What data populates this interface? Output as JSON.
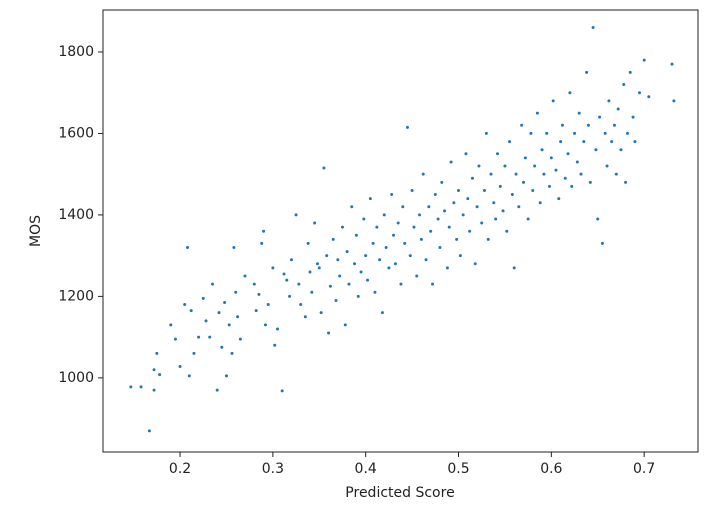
{
  "chart_data": {
    "type": "scatter",
    "xlabel": "Predicted Score",
    "ylabel": "MOS",
    "color": "#1f77b4",
    "xlim": [
      0.117,
      0.758
    ],
    "ylim": [
      818,
      1903
    ],
    "xticks": [
      0.2,
      0.3,
      0.4,
      0.5,
      0.6,
      0.7
    ],
    "yticks": [
      1000,
      1200,
      1400,
      1600,
      1800
    ],
    "x": [
      0.147,
      0.158,
      0.167,
      0.172,
      0.175,
      0.178,
      0.172,
      0.19,
      0.195,
      0.2,
      0.205,
      0.208,
      0.21,
      0.212,
      0.215,
      0.22,
      0.225,
      0.228,
      0.232,
      0.235,
      0.24,
      0.242,
      0.245,
      0.248,
      0.25,
      0.253,
      0.256,
      0.258,
      0.26,
      0.262,
      0.265,
      0.27,
      0.28,
      0.282,
      0.285,
      0.288,
      0.29,
      0.292,
      0.295,
      0.3,
      0.302,
      0.305,
      0.31,
      0.312,
      0.315,
      0.318,
      0.32,
      0.325,
      0.328,
      0.33,
      0.335,
      0.338,
      0.34,
      0.342,
      0.345,
      0.348,
      0.35,
      0.352,
      0.355,
      0.358,
      0.36,
      0.362,
      0.365,
      0.368,
      0.37,
      0.372,
      0.375,
      0.378,
      0.38,
      0.382,
      0.385,
      0.388,
      0.39,
      0.392,
      0.395,
      0.398,
      0.4,
      0.402,
      0.405,
      0.408,
      0.41,
      0.412,
      0.415,
      0.418,
      0.42,
      0.422,
      0.425,
      0.428,
      0.43,
      0.432,
      0.435,
      0.438,
      0.44,
      0.442,
      0.445,
      0.448,
      0.45,
      0.452,
      0.455,
      0.458,
      0.46,
      0.462,
      0.465,
      0.468,
      0.47,
      0.472,
      0.475,
      0.478,
      0.48,
      0.482,
      0.485,
      0.488,
      0.49,
      0.492,
      0.495,
      0.498,
      0.5,
      0.502,
      0.505,
      0.508,
      0.51,
      0.512,
      0.515,
      0.518,
      0.52,
      0.522,
      0.525,
      0.528,
      0.53,
      0.532,
      0.535,
      0.538,
      0.54,
      0.542,
      0.545,
      0.548,
      0.55,
      0.552,
      0.555,
      0.558,
      0.56,
      0.562,
      0.565,
      0.568,
      0.57,
      0.572,
      0.575,
      0.578,
      0.58,
      0.582,
      0.585,
      0.588,
      0.59,
      0.592,
      0.595,
      0.598,
      0.6,
      0.602,
      0.605,
      0.608,
      0.61,
      0.612,
      0.615,
      0.618,
      0.62,
      0.622,
      0.625,
      0.628,
      0.63,
      0.632,
      0.635,
      0.638,
      0.64,
      0.642,
      0.645,
      0.648,
      0.65,
      0.652,
      0.655,
      0.658,
      0.66,
      0.662,
      0.665,
      0.668,
      0.67,
      0.672,
      0.675,
      0.678,
      0.68,
      0.682,
      0.685,
      0.688,
      0.69,
      0.695,
      0.7,
      0.705,
      0.73,
      0.732
    ],
    "y": [
      978,
      978,
      870,
      1020,
      1060,
      1008,
      970,
      1130,
      1095,
      1028,
      1180,
      1320,
      1005,
      1165,
      1060,
      1100,
      1195,
      1140,
      1100,
      1230,
      970,
      1160,
      1075,
      1185,
      1005,
      1130,
      1060,
      1320,
      1210,
      1150,
      1095,
      1250,
      1230,
      1165,
      1205,
      1330,
      1360,
      1130,
      1180,
      1270,
      1080,
      1120,
      968,
      1255,
      1240,
      1200,
      1290,
      1400,
      1230,
      1180,
      1150,
      1330,
      1260,
      1210,
      1380,
      1280,
      1270,
      1160,
      1515,
      1300,
      1110,
      1225,
      1340,
      1190,
      1290,
      1250,
      1370,
      1130,
      1310,
      1230,
      1420,
      1280,
      1350,
      1200,
      1260,
      1390,
      1300,
      1240,
      1440,
      1330,
      1210,
      1370,
      1290,
      1160,
      1400,
      1320,
      1270,
      1450,
      1350,
      1280,
      1380,
      1230,
      1420,
      1330,
      1615,
      1300,
      1460,
      1370,
      1250,
      1400,
      1340,
      1500,
      1290,
      1420,
      1360,
      1230,
      1450,
      1390,
      1320,
      1480,
      1410,
      1270,
      1370,
      1530,
      1430,
      1340,
      1460,
      1300,
      1400,
      1550,
      1440,
      1360,
      1490,
      1280,
      1420,
      1520,
      1380,
      1460,
      1600,
      1340,
      1500,
      1430,
      1390,
      1550,
      1470,
      1410,
      1520,
      1360,
      1580,
      1450,
      1270,
      1500,
      1420,
      1620,
      1480,
      1540,
      1390,
      1600,
      1460,
      1520,
      1650,
      1430,
      1560,
      1500,
      1600,
      1470,
      1540,
      1680,
      1510,
      1440,
      1580,
      1620,
      1490,
      1550,
      1700,
      1470,
      1600,
      1530,
      1650,
      1500,
      1580,
      1750,
      1620,
      1480,
      1860,
      1560,
      1390,
      1640,
      1330,
      1600,
      1520,
      1680,
      1580,
      1620,
      1500,
      1660,
      1560,
      1720,
      1480,
      1600,
      1750,
      1640,
      1580,
      1700,
      1780,
      1690,
      1770,
      1680
    ]
  }
}
